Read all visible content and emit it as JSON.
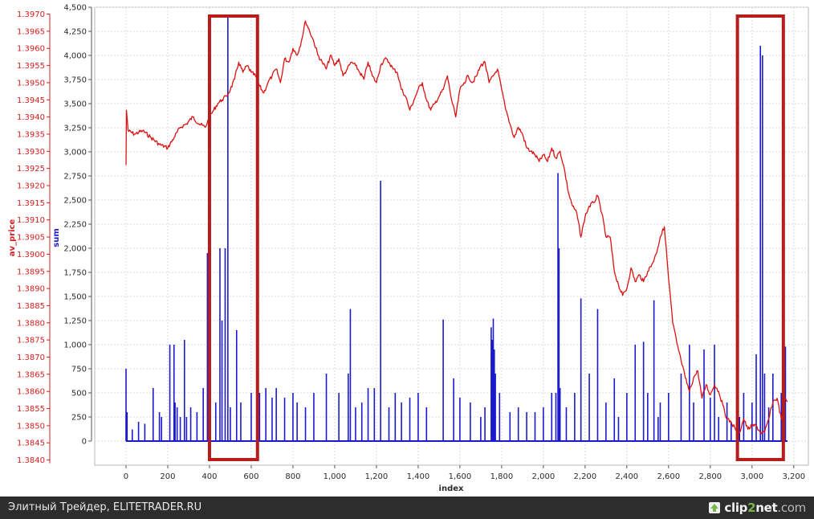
{
  "chart_data": {
    "type": "line",
    "title": "",
    "xlabel": "index",
    "xlim": [
      -150,
      3270
    ],
    "grid": true,
    "x_ticks": [
      0,
      200,
      400,
      600,
      800,
      1000,
      1200,
      1400,
      1600,
      1800,
      2000,
      2200,
      2400,
      2600,
      2800,
      3000,
      3200
    ],
    "x_tick_labels": [
      "0",
      "200",
      "400",
      "600",
      "800",
      "1,000",
      "1,200",
      "1,400",
      "1,600",
      "1,800",
      "2,000",
      "2,200",
      "2,400",
      "2,600",
      "2,800",
      "3,000",
      "3,200"
    ],
    "axes": {
      "left": {
        "label": "av_price",
        "color": "#d42020",
        "range": [
          1.38385,
          1.3972
        ],
        "ticks": [
          "1.3840",
          "1.3845",
          "1.3850",
          "1.3855",
          "1.3860",
          "1.3865",
          "1.3870",
          "1.3875",
          "1.3880",
          "1.3885",
          "1.3890",
          "1.3895",
          "1.3900",
          "1.3905",
          "1.3910",
          "1.3915",
          "1.3920",
          "1.3925",
          "1.3930",
          "1.3935",
          "1.3940",
          "1.3945",
          "1.3950",
          "1.3955",
          "1.3960",
          "1.3965",
          "1.3970"
        ]
      },
      "right": {
        "label": "sum",
        "color": "#1a1acc",
        "range": [
          -250,
          4500
        ],
        "ticks": [
          "0",
          "250",
          "500",
          "750",
          "1,000",
          "1,250",
          "1,500",
          "1,750",
          "2,000",
          "2,250",
          "2,500",
          "2,750",
          "3,000",
          "3,250",
          "3,500",
          "3,750",
          "4,000",
          "4,250",
          "4,500"
        ]
      }
    },
    "series": [
      {
        "name": "av_price",
        "axis": "left",
        "color": "#dd1111",
        "points": [
          [
            0,
            1.3926
          ],
          [
            2,
            1.3942
          ],
          [
            10,
            1.3936
          ],
          [
            40,
            1.3935
          ],
          [
            80,
            1.3936
          ],
          [
            120,
            1.3934
          ],
          [
            160,
            1.3932
          ],
          [
            200,
            1.3931
          ],
          [
            230,
            1.3934
          ],
          [
            260,
            1.3937
          ],
          [
            290,
            1.3938
          ],
          [
            320,
            1.394
          ],
          [
            350,
            1.3938
          ],
          [
            380,
            1.3937
          ],
          [
            400,
            1.394
          ],
          [
            420,
            1.3942
          ],
          [
            440,
            1.3944
          ],
          [
            460,
            1.3945
          ],
          [
            480,
            1.3946
          ],
          [
            500,
            1.3948
          ],
          [
            520,
            1.3951
          ],
          [
            540,
            1.3956
          ],
          [
            560,
            1.3953
          ],
          [
            580,
            1.3955
          ],
          [
            600,
            1.3953
          ],
          [
            620,
            1.3952
          ],
          [
            640,
            1.3949
          ],
          [
            660,
            1.3947
          ],
          [
            680,
            1.395
          ],
          [
            700,
            1.3952
          ],
          [
            720,
            1.3954
          ],
          [
            740,
            1.395
          ],
          [
            760,
            1.3957
          ],
          [
            780,
            1.3956
          ],
          [
            800,
            1.396
          ],
          [
            820,
            1.3958
          ],
          [
            840,
            1.3962
          ],
          [
            860,
            1.3968
          ],
          [
            880,
            1.3965
          ],
          [
            900,
            1.3962
          ],
          [
            920,
            1.3958
          ],
          [
            940,
            1.3956
          ],
          [
            960,
            1.3954
          ],
          [
            980,
            1.3958
          ],
          [
            1000,
            1.3955
          ],
          [
            1020,
            1.3957
          ],
          [
            1040,
            1.3952
          ],
          [
            1060,
            1.3954
          ],
          [
            1080,
            1.3956
          ],
          [
            1100,
            1.3955
          ],
          [
            1120,
            1.3953
          ],
          [
            1140,
            1.3951
          ],
          [
            1160,
            1.3956
          ],
          [
            1180,
            1.3952
          ],
          [
            1200,
            1.395
          ],
          [
            1220,
            1.3955
          ],
          [
            1240,
            1.3957
          ],
          [
            1260,
            1.3956
          ],
          [
            1280,
            1.3954
          ],
          [
            1300,
            1.3953
          ],
          [
            1320,
            1.3948
          ],
          [
            1340,
            1.3946
          ],
          [
            1360,
            1.3942
          ],
          [
            1380,
            1.3945
          ],
          [
            1400,
            1.3948
          ],
          [
            1420,
            1.395
          ],
          [
            1440,
            1.3945
          ],
          [
            1460,
            1.3942
          ],
          [
            1480,
            1.3944
          ],
          [
            1500,
            1.3946
          ],
          [
            1520,
            1.3948
          ],
          [
            1540,
            1.3952
          ],
          [
            1560,
            1.3945
          ],
          [
            1580,
            1.394
          ],
          [
            1600,
            1.3948
          ],
          [
            1620,
            1.395
          ],
          [
            1640,
            1.3952
          ],
          [
            1660,
            1.395
          ],
          [
            1680,
            1.3952
          ],
          [
            1700,
            1.3955
          ],
          [
            1720,
            1.3956
          ],
          [
            1740,
            1.395
          ],
          [
            1760,
            1.3952
          ],
          [
            1780,
            1.3954
          ],
          [
            1800,
            1.3948
          ],
          [
            1820,
            1.3942
          ],
          [
            1840,
            1.3938
          ],
          [
            1860,
            1.3934
          ],
          [
            1880,
            1.3937
          ],
          [
            1900,
            1.3935
          ],
          [
            1920,
            1.3931
          ],
          [
            1940,
            1.393
          ],
          [
            1960,
            1.3929
          ],
          [
            1980,
            1.3927
          ],
          [
            2000,
            1.3929
          ],
          [
            2020,
            1.3927
          ],
          [
            2040,
            1.3931
          ],
          [
            2060,
            1.3928
          ],
          [
            2080,
            1.393
          ],
          [
            2100,
            1.3925
          ],
          [
            2120,
            1.3918
          ],
          [
            2140,
            1.3914
          ],
          [
            2160,
            1.3912
          ],
          [
            2180,
            1.3905
          ],
          [
            2200,
            1.3911
          ],
          [
            2220,
            1.3914
          ],
          [
            2240,
            1.3915
          ],
          [
            2260,
            1.3917
          ],
          [
            2280,
            1.3912
          ],
          [
            2300,
            1.3905
          ],
          [
            2320,
            1.3905
          ],
          [
            2340,
            1.3895
          ],
          [
            2360,
            1.3891
          ],
          [
            2380,
            1.3888
          ],
          [
            2400,
            1.389
          ],
          [
            2420,
            1.3896
          ],
          [
            2440,
            1.3892
          ],
          [
            2460,
            1.3894
          ],
          [
            2480,
            1.3892
          ],
          [
            2500,
            1.3895
          ],
          [
            2520,
            1.3897
          ],
          [
            2540,
            1.39
          ],
          [
            2560,
            1.3905
          ],
          [
            2580,
            1.3908
          ],
          [
            2600,
            1.3893
          ],
          [
            2620,
            1.388
          ],
          [
            2640,
            1.3874
          ],
          [
            2660,
            1.3869
          ],
          [
            2680,
            1.3864
          ],
          [
            2700,
            1.386
          ],
          [
            2720,
            1.3864
          ],
          [
            2740,
            1.3866
          ],
          [
            2760,
            1.3858
          ],
          [
            2780,
            1.3862
          ],
          [
            2800,
            1.3859
          ],
          [
            2820,
            1.3862
          ],
          [
            2840,
            1.386
          ],
          [
            2860,
            1.3856
          ],
          [
            2880,
            1.3852
          ],
          [
            2900,
            1.3851
          ],
          [
            2920,
            1.3849
          ],
          [
            2940,
            1.3848
          ],
          [
            2960,
            1.3852
          ],
          [
            2980,
            1.3849
          ],
          [
            3000,
            1.385
          ],
          [
            3020,
            1.385
          ],
          [
            3040,
            1.3848
          ],
          [
            3060,
            1.3848
          ],
          [
            3080,
            1.3852
          ],
          [
            3100,
            1.3857
          ],
          [
            3120,
            1.3858
          ],
          [
            3140,
            1.3852
          ],
          [
            3160,
            1.3858
          ],
          [
            3170,
            1.3857
          ]
        ]
      },
      {
        "name": "sum",
        "axis": "right",
        "color": "#1a1acc",
        "x_extent": [
          0,
          3170
        ],
        "baseline": 0,
        "spikes": [
          [
            0,
            750
          ],
          [
            5,
            300
          ],
          [
            30,
            120
          ],
          [
            60,
            200
          ],
          [
            90,
            180
          ],
          [
            130,
            550
          ],
          [
            160,
            300
          ],
          [
            170,
            250
          ],
          [
            210,
            1000
          ],
          [
            230,
            1000
          ],
          [
            235,
            400
          ],
          [
            245,
            350
          ],
          [
            260,
            250
          ],
          [
            280,
            1050
          ],
          [
            290,
            250
          ],
          [
            310,
            350
          ],
          [
            340,
            300
          ],
          [
            370,
            550
          ],
          [
            390,
            1950
          ],
          [
            400,
            350
          ],
          [
            430,
            400
          ],
          [
            450,
            2000
          ],
          [
            460,
            1250
          ],
          [
            475,
            2000
          ],
          [
            488,
            4400
          ],
          [
            500,
            350
          ],
          [
            530,
            1150
          ],
          [
            550,
            400
          ],
          [
            600,
            500
          ],
          [
            640,
            500
          ],
          [
            670,
            550
          ],
          [
            700,
            450
          ],
          [
            720,
            550
          ],
          [
            760,
            450
          ],
          [
            800,
            500
          ],
          [
            820,
            400
          ],
          [
            860,
            350
          ],
          [
            900,
            500
          ],
          [
            960,
            700
          ],
          [
            1020,
            500
          ],
          [
            1065,
            700
          ],
          [
            1075,
            1370
          ],
          [
            1100,
            350
          ],
          [
            1130,
            400
          ],
          [
            1160,
            550
          ],
          [
            1190,
            550
          ],
          [
            1220,
            2700
          ],
          [
            1260,
            350
          ],
          [
            1290,
            500
          ],
          [
            1320,
            400
          ],
          [
            1360,
            450
          ],
          [
            1400,
            500
          ],
          [
            1440,
            350
          ],
          [
            1520,
            1260
          ],
          [
            1570,
            650
          ],
          [
            1600,
            450
          ],
          [
            1650,
            400
          ],
          [
            1700,
            250
          ],
          [
            1720,
            350
          ],
          [
            1750,
            1180
          ],
          [
            1755,
            1050
          ],
          [
            1760,
            1270
          ],
          [
            1765,
            950
          ],
          [
            1770,
            700
          ],
          [
            1790,
            500
          ],
          [
            1840,
            300
          ],
          [
            1880,
            350
          ],
          [
            1920,
            300
          ],
          [
            1960,
            300
          ],
          [
            2000,
            350
          ],
          [
            2040,
            500
          ],
          [
            2060,
            500
          ],
          [
            2070,
            2780
          ],
          [
            2075,
            2000
          ],
          [
            2080,
            550
          ],
          [
            2110,
            350
          ],
          [
            2150,
            500
          ],
          [
            2180,
            1480
          ],
          [
            2220,
            700
          ],
          [
            2260,
            1370
          ],
          [
            2300,
            400
          ],
          [
            2340,
            650
          ],
          [
            2360,
            250
          ],
          [
            2400,
            500
          ],
          [
            2440,
            1000
          ],
          [
            2480,
            1030
          ],
          [
            2500,
            500
          ],
          [
            2530,
            1460
          ],
          [
            2550,
            250
          ],
          [
            2560,
            400
          ],
          [
            2600,
            500
          ],
          [
            2660,
            700
          ],
          [
            2700,
            1000
          ],
          [
            2720,
            400
          ],
          [
            2770,
            950
          ],
          [
            2800,
            450
          ],
          [
            2820,
            1000
          ],
          [
            2840,
            250
          ],
          [
            2880,
            400
          ],
          [
            2900,
            200
          ],
          [
            2940,
            250
          ],
          [
            2960,
            500
          ],
          [
            3000,
            400
          ],
          [
            3020,
            900
          ],
          [
            3040,
            4100
          ],
          [
            3050,
            4000
          ],
          [
            3060,
            700
          ],
          [
            3080,
            350
          ],
          [
            3100,
            700
          ],
          [
            3140,
            500
          ],
          [
            3160,
            980
          ]
        ]
      }
    ],
    "annotations": [
      {
        "type": "highlight-box",
        "color": "#b71c1c",
        "x_range": [
          400,
          630
        ]
      },
      {
        "type": "highlight-box",
        "color": "#b71c1c",
        "x_range": [
          2930,
          3150
        ]
      }
    ]
  },
  "footer": {
    "caption": "Элитный Трейдер, ELITETRADER.RU",
    "brand_prefix": "clip",
    "brand_highlight": "2",
    "brand_suffix": "net",
    "brand_domain": ".com"
  }
}
